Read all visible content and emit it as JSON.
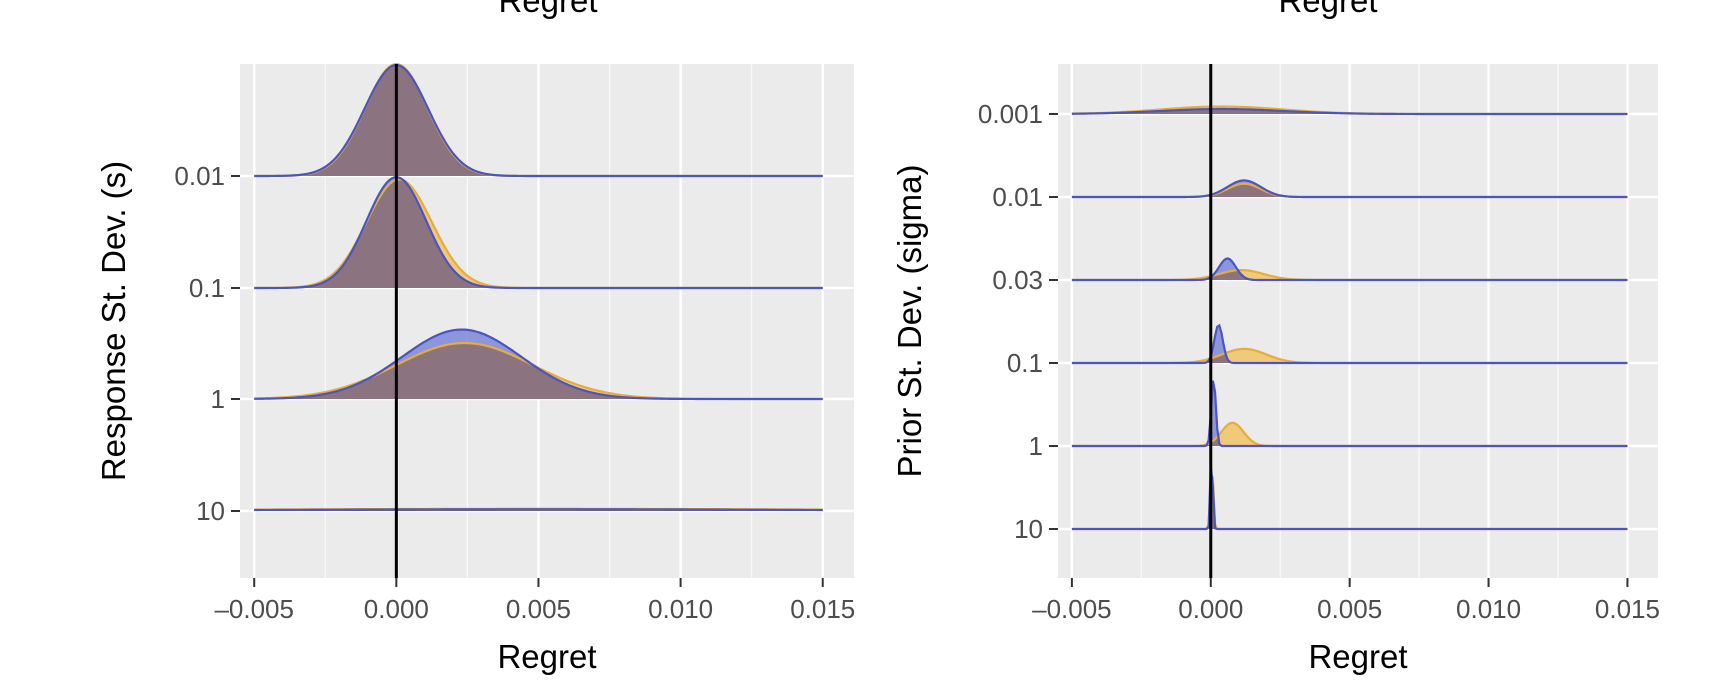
{
  "colors": {
    "panel_bg": "#ebebeb",
    "grid": "#ffffff",
    "ref_line": "#000000",
    "series_a_fill": "#f2be55",
    "series_a_line": "#e8ac3a",
    "series_b_fill": "#6f79d6",
    "series_b_line": "#4a55c0",
    "overlap_fill": "#8c7380"
  },
  "top_labels": [
    "Regret",
    "Regret"
  ],
  "chart_data": [
    {
      "type": "area",
      "subtype": "ridgeline",
      "xlabel": "Regret",
      "ylabel": "Response St. Dev. (s)",
      "xlim": [
        -0.0055,
        0.0161
      ],
      "x_ticks": [
        -0.005,
        0.0,
        0.005,
        0.01,
        0.015
      ],
      "x_tick_labels": [
        "–0.005",
        "0.000",
        "0.005",
        "0.010",
        "0.015"
      ],
      "reference_line_x": 0.0,
      "grid": true,
      "categories": [
        "0.01",
        "0.1",
        "1",
        "10"
      ],
      "ridges": [
        {
          "label": "0.01",
          "series": [
            {
              "mean": 0.0,
              "sd": 0.0011,
              "peak_height": 1.0
            },
            {
              "mean": 0.0,
              "sd": 0.00112,
              "peak_height": 0.99
            }
          ]
        },
        {
          "label": "0.1",
          "series": [
            {
              "mean": 0.0001,
              "sd": 0.00115,
              "peak_height": 0.97
            },
            {
              "mean": 0.0,
              "sd": 0.00105,
              "peak_height": 0.99
            }
          ]
        },
        {
          "label": "1",
          "series": [
            {
              "mean": 0.0024,
              "sd": 0.0024,
              "peak_height": 0.5
            },
            {
              "mean": 0.0023,
              "sd": 0.0021,
              "peak_height": 0.62
            }
          ]
        },
        {
          "label": "10",
          "series": [
            {
              "mean": 0.005,
              "sd": 0.01,
              "peak_height": 0.02
            },
            {
              "mean": 0.005,
              "sd": 0.01,
              "peak_height": 0.015
            }
          ]
        }
      ]
    },
    {
      "type": "area",
      "subtype": "ridgeline",
      "xlabel": "Regret",
      "ylabel": "Prior St. Dev. (sigma)",
      "xlim": [
        -0.0055,
        0.0161
      ],
      "x_ticks": [
        -0.005,
        0.0,
        0.005,
        0.01,
        0.015
      ],
      "x_tick_labels": [
        "–0.005",
        "0.000",
        "0.005",
        "0.010",
        "0.015"
      ],
      "reference_line_x": 0.0,
      "grid": true,
      "categories": [
        "0.001",
        "0.01",
        "0.03",
        "0.1",
        "1",
        "10"
      ],
      "ridges": [
        {
          "label": "0.001",
          "series": [
            {
              "mean": 0.0004,
              "sd": 0.0022,
              "peak_height": 0.09
            },
            {
              "mean": 0.0004,
              "sd": 0.0022,
              "peak_height": 0.06
            }
          ]
        },
        {
          "label": "0.01",
          "series": [
            {
              "mean": 0.0012,
              "sd": 0.0006,
              "peak_height": 0.16
            },
            {
              "mean": 0.0012,
              "sd": 0.0006,
              "peak_height": 0.2
            }
          ]
        },
        {
          "label": "0.03",
          "series": [
            {
              "mean": 0.0011,
              "sd": 0.0008,
              "peak_height": 0.12
            },
            {
              "mean": 0.0006,
              "sd": 0.0003,
              "peak_height": 0.26
            }
          ]
        },
        {
          "label": "0.1",
          "series": [
            {
              "mean": 0.0012,
              "sd": 0.0008,
              "peak_height": 0.17
            },
            {
              "mean": 0.00028,
              "sd": 0.00015,
              "peak_height": 0.46
            }
          ]
        },
        {
          "label": "1",
          "series": [
            {
              "mean": 0.00078,
              "sd": 0.0004,
              "peak_height": 0.28
            },
            {
              "mean": 0.0001,
              "sd": 8e-05,
              "peak_height": 0.82
            }
          ]
        },
        {
          "label": "10",
          "series": [
            {
              "mean": 4e-05,
              "sd": 5e-05,
              "peak_height": 0.8
            },
            {
              "mean": 3e-05,
              "sd": 4e-05,
              "peak_height": 1.0
            }
          ]
        }
      ]
    }
  ]
}
